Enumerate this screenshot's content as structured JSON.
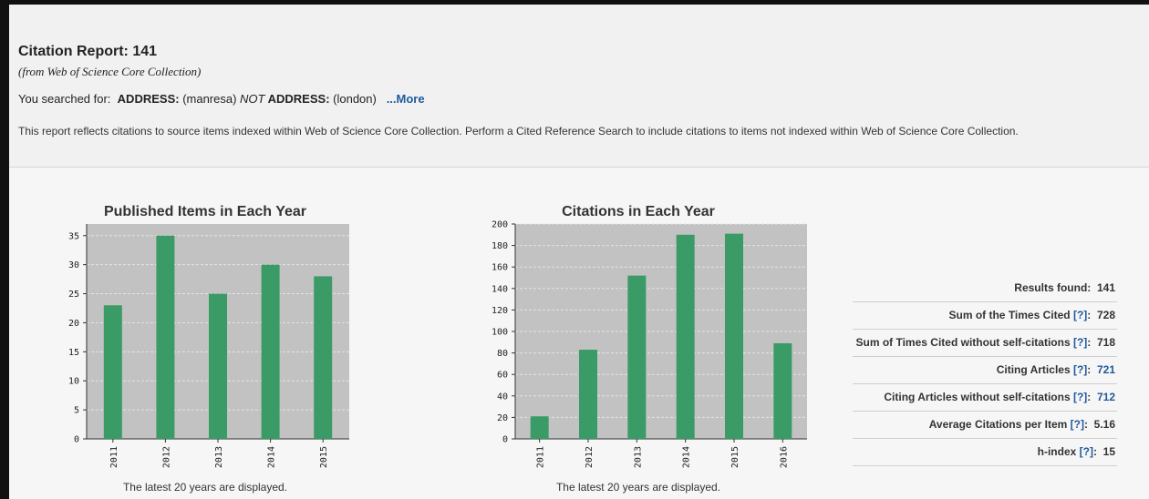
{
  "report": {
    "title": "Citation Report: 141",
    "subtitle": "(from Web of Science Core Collection)",
    "searched_prefix": "You searched for:",
    "query_parts": [
      {
        "key": "ADDRESS:",
        "value": " (manresa) "
      },
      {
        "operator": "NOT"
      },
      {
        "key": " ADDRESS:",
        "value": " (london) "
      }
    ],
    "more_link": "...More",
    "description": "This report reflects citations to source items indexed within Web of Science Core Collection. Perform a Cited Reference Search to include citations to items not indexed within Web of Science Core Collection."
  },
  "chart_data": [
    {
      "type": "bar",
      "title": "Published Items in Each Year",
      "categories": [
        "2011",
        "2012",
        "2013",
        "2014",
        "2015"
      ],
      "values": [
        23,
        35,
        25,
        30,
        28
      ],
      "ylim": [
        0,
        37
      ],
      "yticks": [
        0,
        5,
        10,
        15,
        20,
        25,
        30,
        35
      ],
      "grid": true,
      "bar_color": "#3a9b67",
      "plot_bg": "#c2c2c2",
      "caption": "The latest 20 years are displayed."
    },
    {
      "type": "bar",
      "title": "Citations in Each Year",
      "categories": [
        "2011",
        "2012",
        "2013",
        "2014",
        "2015",
        "2016"
      ],
      "values": [
        21,
        83,
        152,
        190,
        191,
        89
      ],
      "ylim": [
        0,
        200
      ],
      "yticks": [
        0,
        20,
        40,
        60,
        80,
        100,
        120,
        140,
        160,
        180,
        200
      ],
      "grid": true,
      "bar_color": "#3a9b67",
      "plot_bg": "#c2c2c2",
      "caption": "The latest 20 years are displayed."
    }
  ],
  "stats": [
    {
      "label": "Results found:",
      "help": "",
      "value": "141",
      "link": false
    },
    {
      "label": "Sum of the Times Cited",
      "help": "[?]",
      "value": "728",
      "link": false
    },
    {
      "label": "Sum of Times Cited without self-citations",
      "help": "[?]",
      "value": "718",
      "link": false
    },
    {
      "label": "Citing Articles",
      "help": "[?]",
      "value": "721",
      "link": true
    },
    {
      "label": "Citing Articles without self-citations",
      "help": "[?]",
      "value": "712",
      "link": true
    },
    {
      "label": "Average Citations per Item",
      "help": "[?]",
      "value": "5.16",
      "link": false
    },
    {
      "label": "h-index",
      "help": "[?]",
      "value": "15",
      "link": false
    }
  ]
}
